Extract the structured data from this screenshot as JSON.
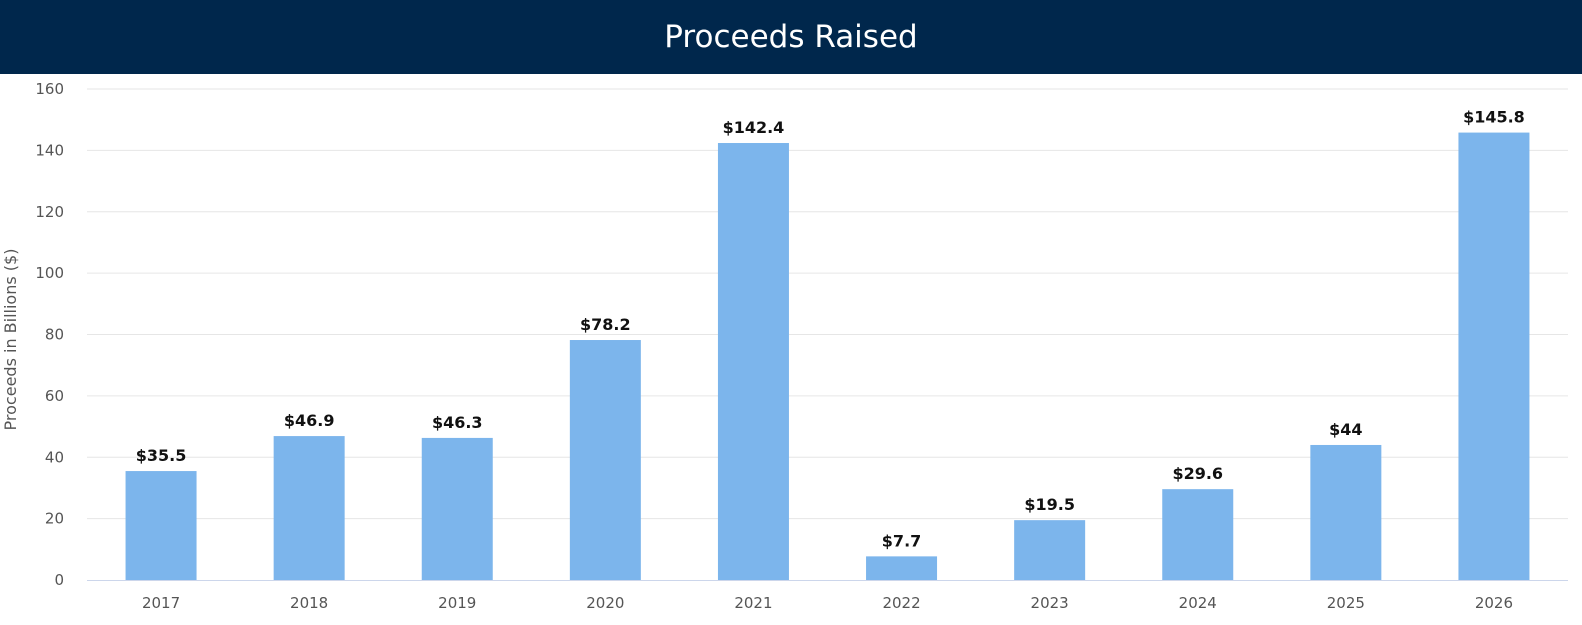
{
  "colors": {
    "header_background": "#00274C",
    "bar": "#7CB5EC",
    "grid": "#E6E6E6",
    "axis_line": "#CCD6EB"
  },
  "chart_data": {
    "type": "bar",
    "title": "Proceeds Raised",
    "xlabel": "",
    "ylabel": "Proceeds in Billions ($)",
    "ylim": [
      0,
      160
    ],
    "yticks": [
      0,
      20,
      40,
      60,
      80,
      100,
      120,
      140,
      160
    ],
    "categories": [
      "2017",
      "2018",
      "2019",
      "2020",
      "2021",
      "2022",
      "2023",
      "2024",
      "2025",
      "2026"
    ],
    "values": [
      35.5,
      46.9,
      46.3,
      78.2,
      142.4,
      7.7,
      19.5,
      29.6,
      44,
      145.8
    ],
    "data_labels": [
      "$35.5",
      "$46.9",
      "$46.3",
      "$78.2",
      "$142.4",
      "$7.7",
      "$19.5",
      "$29.6",
      "$44",
      "$145.8"
    ],
    "grid": true,
    "legend": "none"
  }
}
